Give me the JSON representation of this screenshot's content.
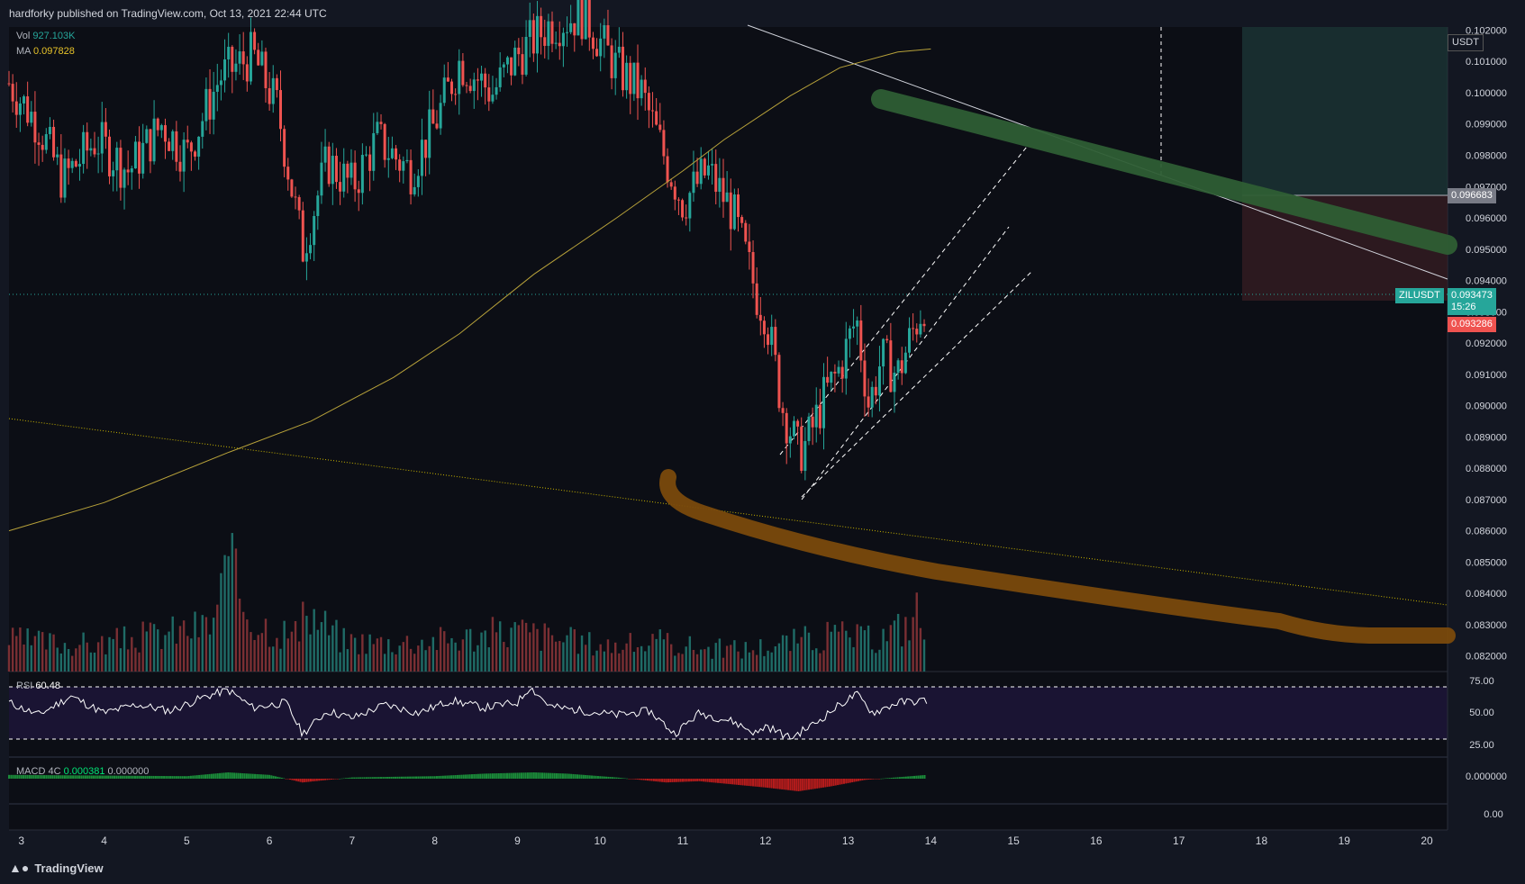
{
  "header": {
    "publish_text": "hardforky published on TradingView.com, Oct 13, 2021 22:44 UTC"
  },
  "footer": {
    "logo_text": "TradingView"
  },
  "legends": {
    "vol_label": "Vol",
    "vol_value": "927.103K",
    "ma_label": "MA",
    "ma_value": "0.097828",
    "rsi_label": "RSI",
    "rsi_value": "60.48",
    "macd_label": "MACD",
    "macd_params": "4C",
    "macd_value": "0.000381",
    "macd_value2": "0.000000"
  },
  "price_axis": {
    "currency": "USDT",
    "ticks": [
      "0.102000",
      "0.101000",
      "0.100000",
      "0.099000",
      "0.098000",
      "0.097000",
      "0.096000",
      "0.095000",
      "0.094000",
      "0.093000",
      "0.092000",
      "0.091000",
      "0.090000",
      "0.089000",
      "0.088000",
      "0.087000",
      "0.086000",
      "0.085000",
      "0.084000",
      "0.083000",
      "0.082000"
    ],
    "target_tag": "0.096683",
    "symbol_tag": "ZILUSDT",
    "last_price": "0.093473",
    "countdown": "15:26",
    "stop_tag": "0.093286",
    "colors": {
      "up": "#26a69a",
      "down": "#ef5350",
      "tag_grey": "#787b86"
    }
  },
  "rsi_axis": {
    "ticks": [
      "75.00",
      "50.00",
      "25.00"
    ]
  },
  "macd_axis": {
    "ticks": [
      "0.000000",
      "0.00"
    ]
  },
  "time_axis": {
    "ticks": [
      "3",
      "4",
      "5",
      "6",
      "7",
      "8",
      "9",
      "10",
      "11",
      "12",
      "13",
      "14",
      "15",
      "16",
      "17",
      "18",
      "19",
      "20"
    ]
  },
  "chart_data": {
    "type": "candlestick",
    "symbol": "ZILUSDT",
    "ylim": [
      0.0815,
      0.1021
    ],
    "x_range": [
      2.85,
      20.25
    ],
    "last_price": 0.093473,
    "target": 0.096683,
    "stop": 0.093286,
    "moving_average": [
      [
        2.85,
        0.086
      ],
      [
        4.0,
        0.0869
      ],
      [
        5.5,
        0.0885
      ],
      [
        6.5,
        0.0895
      ],
      [
        7.5,
        0.0909
      ],
      [
        8.3,
        0.0923
      ],
      [
        9.2,
        0.0942
      ],
      [
        10.2,
        0.096
      ],
      [
        11.0,
        0.0975
      ],
      [
        11.5,
        0.0985
      ],
      [
        12.3,
        0.0999
      ],
      [
        12.9,
        0.1008
      ],
      [
        13.6,
        0.1013
      ],
      [
        14.0,
        0.1014
      ]
    ],
    "ohlc_path": [
      [
        2.85,
        0.1003
      ],
      [
        3.2,
        0.099
      ],
      [
        3.5,
        0.0972
      ],
      [
        3.9,
        0.0985
      ],
      [
        4.3,
        0.0975
      ],
      [
        4.7,
        0.099
      ],
      [
        5.0,
        0.098
      ],
      [
        5.4,
        0.1005
      ],
      [
        5.8,
        0.1012
      ],
      [
        6.1,
        0.0995
      ],
      [
        6.4,
        0.095
      ],
      [
        6.7,
        0.0978
      ],
      [
        7.0,
        0.097
      ],
      [
        7.3,
        0.0985
      ],
      [
        7.7,
        0.0975
      ],
      [
        8.0,
        0.099
      ],
      [
        8.3,
        0.101
      ],
      [
        8.7,
        0.1
      ],
      [
        9.0,
        0.1012
      ],
      [
        9.4,
        0.1022
      ],
      [
        9.8,
        0.1025
      ],
      [
        10.2,
        0.1008
      ],
      [
        10.5,
        0.1
      ],
      [
        10.8,
        0.0978
      ],
      [
        11.0,
        0.0965
      ],
      [
        11.3,
        0.0975
      ],
      [
        11.6,
        0.0962
      ],
      [
        11.9,
        0.0935
      ],
      [
        12.0,
        0.093
      ],
      [
        12.2,
        0.09
      ],
      [
        12.4,
        0.0885
      ],
      [
        12.5,
        0.0888
      ],
      [
        12.7,
        0.0902
      ],
      [
        12.9,
        0.0912
      ],
      [
        13.1,
        0.0928
      ],
      [
        13.25,
        0.09
      ],
      [
        13.4,
        0.0915
      ],
      [
        13.6,
        0.091
      ],
      [
        13.8,
        0.0925
      ],
      [
        13.95,
        0.0935
      ]
    ],
    "volume_path": [
      [
        2.85,
        0.3
      ],
      [
        3.3,
        0.28
      ],
      [
        3.9,
        0.26
      ],
      [
        4.6,
        0.35
      ],
      [
        5.3,
        0.45
      ],
      [
        5.5,
        1.0
      ],
      [
        5.8,
        0.5
      ],
      [
        6.3,
        0.35
      ],
      [
        6.5,
        0.55
      ],
      [
        6.9,
        0.3
      ],
      [
        7.5,
        0.28
      ],
      [
        8.3,
        0.32
      ],
      [
        9.0,
        0.4
      ],
      [
        9.6,
        0.3
      ],
      [
        10.2,
        0.25
      ],
      [
        10.8,
        0.28
      ],
      [
        11.3,
        0.22
      ],
      [
        11.8,
        0.22
      ],
      [
        12.4,
        0.3
      ],
      [
        12.9,
        0.35
      ],
      [
        13.3,
        0.3
      ],
      [
        13.7,
        0.45
      ],
      [
        13.85,
        0.6
      ],
      [
        13.95,
        0.25
      ]
    ],
    "rsi_path": [
      [
        2.85,
        60
      ],
      [
        3.2,
        48
      ],
      [
        3.6,
        66
      ],
      [
        4.0,
        50
      ],
      [
        4.4,
        58
      ],
      [
        4.8,
        52
      ],
      [
        5.2,
        65
      ],
      [
        5.5,
        72
      ],
      [
        5.8,
        55
      ],
      [
        6.2,
        60
      ],
      [
        6.4,
        30
      ],
      [
        6.7,
        52
      ],
      [
        7.0,
        45
      ],
      [
        7.4,
        58
      ],
      [
        7.8,
        50
      ],
      [
        8.2,
        62
      ],
      [
        8.6,
        55
      ],
      [
        9.0,
        60
      ],
      [
        9.15,
        75
      ],
      [
        9.4,
        56
      ],
      [
        9.8,
        52
      ],
      [
        10.2,
        48
      ],
      [
        10.6,
        52
      ],
      [
        10.9,
        30
      ],
      [
        11.2,
        50
      ],
      [
        11.6,
        42
      ],
      [
        11.9,
        30
      ],
      [
        12.0,
        38
      ],
      [
        12.3,
        26
      ],
      [
        12.6,
        40
      ],
      [
        12.9,
        58
      ],
      [
        13.1,
        68
      ],
      [
        13.3,
        50
      ],
      [
        13.6,
        60
      ],
      [
        13.95,
        62
      ]
    ],
    "macd_path": [
      [
        2.85,
        0.3
      ],
      [
        5.0,
        0.2
      ],
      [
        5.5,
        0.5
      ],
      [
        6.0,
        0.3
      ],
      [
        6.4,
        -0.3
      ],
      [
        7.0,
        0.1
      ],
      [
        8.0,
        0.2
      ],
      [
        8.6,
        0.4
      ],
      [
        9.2,
        0.5
      ],
      [
        9.6,
        0.4
      ],
      [
        10.2,
        0.1
      ],
      [
        10.8,
        -0.3
      ],
      [
        11.2,
        -0.2
      ],
      [
        12.0,
        -0.7
      ],
      [
        12.4,
        -1.0
      ],
      [
        12.8,
        -0.6
      ],
      [
        13.2,
        -0.1
      ],
      [
        13.95,
        0.3
      ]
    ]
  }
}
